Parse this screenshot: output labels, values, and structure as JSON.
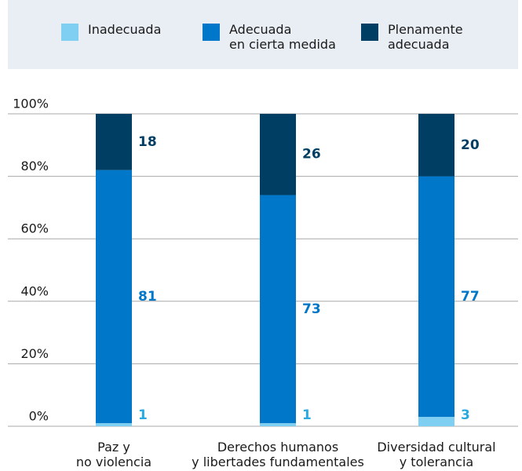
{
  "chart_data": {
    "type": "stacked_bar",
    "categories": [
      "Paz y\nno violencia",
      "Derechos humanos\ny libertades fundamentales",
      "Diversidad cultural\ny tolerancia"
    ],
    "series": [
      {
        "name": "Inadecuada",
        "color": "#7fcff2",
        "label_color": "#2aa9e0",
        "values": [
          1,
          1,
          3
        ]
      },
      {
        "name": "Adecuada\nen cierta medida",
        "color": "#0077c8",
        "label_color": "#0077c8",
        "values": [
          81,
          73,
          77
        ]
      },
      {
        "name": "Plenamente\nadecuada",
        "color": "#003f63",
        "label_color": "#003f63",
        "values": [
          18,
          26,
          20
        ]
      }
    ],
    "ylim": [
      0,
      100
    ],
    "yticks": [
      {
        "value": 0,
        "label": "0%"
      },
      {
        "value": 20,
        "label": "20%"
      },
      {
        "value": 40,
        "label": "40%"
      },
      {
        "value": 60,
        "label": "60%"
      },
      {
        "value": 80,
        "label": "80%"
      },
      {
        "value": 100,
        "label": "100%"
      }
    ],
    "grid": true
  }
}
